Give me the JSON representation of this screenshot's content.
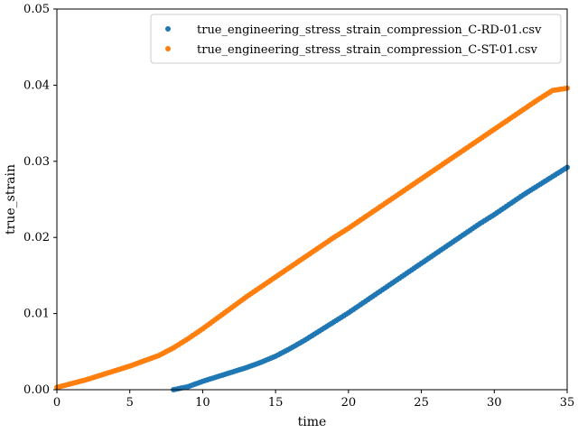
{
  "chart_data": {
    "type": "scatter",
    "title": "",
    "xlabel": "time",
    "ylabel": "true_strain",
    "xlim": [
      0,
      35
    ],
    "ylim": [
      0,
      0.05
    ],
    "xticks": [
      0,
      5,
      10,
      15,
      20,
      25,
      30,
      35
    ],
    "yticks": [
      0.0,
      0.01,
      0.02,
      0.03,
      0.04,
      0.05
    ],
    "ytick_labels": [
      "0.00",
      "0.01",
      "0.02",
      "0.03",
      "0.04",
      "0.05"
    ],
    "grid": false,
    "legend_position": "top-right",
    "series": [
      {
        "name": "true_engineering_stress_strain_compression_C-RD-01.csv",
        "color": "#1f77b4",
        "x": [
          8.0,
          9.0,
          10.0,
          11.0,
          12.0,
          13.0,
          14.0,
          15.0,
          16.0,
          17.0,
          18.0,
          19.0,
          20.0,
          21.0,
          22.0,
          23.0,
          24.0,
          25.0,
          26.0,
          27.0,
          28.0,
          29.0,
          30.0,
          31.0,
          32.0,
          33.0,
          34.0,
          35.0
        ],
        "y": [
          0.0,
          0.0004,
          0.0011,
          0.0017,
          0.0023,
          0.0029,
          0.0036,
          0.0044,
          0.0054,
          0.0065,
          0.0077,
          0.0089,
          0.0101,
          0.0114,
          0.0127,
          0.014,
          0.0153,
          0.0166,
          0.0179,
          0.0192,
          0.0205,
          0.0218,
          0.023,
          0.0243,
          0.0256,
          0.0268,
          0.028,
          0.0292
        ]
      },
      {
        "name": "true_engineering_stress_strain_compression_C-ST-01.csv",
        "color": "#ff7f0e",
        "x": [
          0.0,
          1.0,
          2.0,
          3.0,
          4.0,
          5.0,
          6.0,
          7.0,
          8.0,
          9.0,
          10.0,
          11.0,
          12.0,
          13.0,
          14.0,
          15.0,
          16.0,
          17.0,
          18.0,
          19.0,
          20.0,
          21.0,
          22.0,
          23.0,
          24.0,
          25.0,
          26.0,
          27.0,
          28.0,
          29.0,
          30.0,
          31.0,
          32.0,
          33.0,
          34.0,
          35.0
        ],
        "y": [
          0.0003,
          0.0008,
          0.0013,
          0.0019,
          0.0025,
          0.0031,
          0.0038,
          0.0045,
          0.0055,
          0.0067,
          0.008,
          0.0094,
          0.0108,
          0.0122,
          0.0135,
          0.0148,
          0.0161,
          0.0174,
          0.0187,
          0.02,
          0.0212,
          0.0225,
          0.0238,
          0.0251,
          0.0264,
          0.0277,
          0.029,
          0.0303,
          0.0316,
          0.0329,
          0.0342,
          0.0355,
          0.0368,
          0.0381,
          0.0393,
          0.0396
        ]
      }
    ]
  }
}
